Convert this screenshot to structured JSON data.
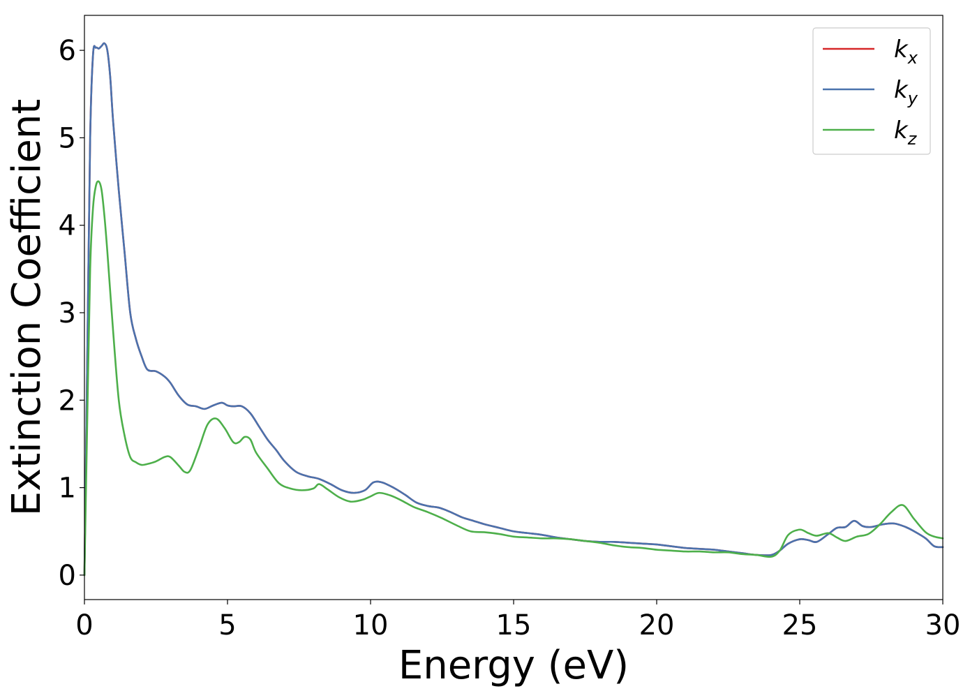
{
  "chart_data": {
    "type": "line",
    "xlabel": "Energy (eV)",
    "ylabel": "Extinction Coefficient",
    "xlim": [
      0,
      30
    ],
    "ylim": [
      -0.28,
      6.4
    ],
    "xticks": [
      0,
      5,
      10,
      15,
      20,
      25,
      30
    ],
    "yticks": [
      0,
      1,
      2,
      3,
      4,
      5,
      6
    ],
    "xtick_labels": [
      "0",
      "5",
      "10",
      "15",
      "20",
      "25",
      "30"
    ],
    "ytick_labels": [
      "0",
      "1",
      "2",
      "3",
      "4",
      "5",
      "6"
    ],
    "grid": false,
    "legend_position": "top-right",
    "series": [
      {
        "name": "k_x",
        "label_base": "k",
        "label_sub": "x",
        "color": "#d62728",
        "x": [
          0,
          0.1,
          0.2,
          0.3,
          0.4,
          0.5,
          0.6,
          0.7,
          0.8,
          0.9,
          1.0,
          1.2,
          1.4,
          1.6,
          1.8,
          2.0,
          2.2,
          2.5,
          2.8,
          3.0,
          3.3,
          3.6,
          3.9,
          4.2,
          4.5,
          4.8,
          5.0,
          5.2,
          5.5,
          5.8,
          6.1,
          6.4,
          6.7,
          7.0,
          7.4,
          7.8,
          8.2,
          8.6,
          9.0,
          9.4,
          9.8,
          10.1,
          10.4,
          10.8,
          11.2,
          11.6,
          12.0,
          12.4,
          12.8,
          13.2,
          13.6,
          14.0,
          14.5,
          15.0,
          15.5,
          16.0,
          16.5,
          17.0,
          17.5,
          18.0,
          18.5,
          19.0,
          19.5,
          20.0,
          20.5,
          21.0,
          21.5,
          22.0,
          22.5,
          23.0,
          23.5,
          24.0,
          24.3,
          24.6,
          25.0,
          25.3,
          25.6,
          26.0,
          26.3,
          26.6,
          26.9,
          27.2,
          27.5,
          27.9,
          28.3,
          28.7,
          29.0,
          29.4,
          29.7,
          30.0
        ],
        "y": [
          0.0,
          2.5,
          5.0,
          5.95,
          6.03,
          6.02,
          6.05,
          6.08,
          6.0,
          5.7,
          5.2,
          4.4,
          3.7,
          3.0,
          2.7,
          2.5,
          2.35,
          2.33,
          2.27,
          2.2,
          2.05,
          1.95,
          1.93,
          1.9,
          1.94,
          1.97,
          1.94,
          1.93,
          1.93,
          1.85,
          1.7,
          1.55,
          1.43,
          1.3,
          1.18,
          1.13,
          1.1,
          1.04,
          0.97,
          0.94,
          0.97,
          1.06,
          1.06,
          1.0,
          0.92,
          0.83,
          0.79,
          0.77,
          0.72,
          0.66,
          0.62,
          0.58,
          0.54,
          0.5,
          0.48,
          0.46,
          0.43,
          0.41,
          0.39,
          0.38,
          0.38,
          0.37,
          0.36,
          0.35,
          0.33,
          0.31,
          0.3,
          0.29,
          0.27,
          0.25,
          0.23,
          0.23,
          0.28,
          0.36,
          0.41,
          0.4,
          0.38,
          0.47,
          0.54,
          0.55,
          0.62,
          0.56,
          0.55,
          0.58,
          0.59,
          0.55,
          0.5,
          0.42,
          0.33,
          0.32
        ]
      },
      {
        "name": "k_y",
        "label_base": "k",
        "label_sub": "y",
        "color": "#4a72ad",
        "x": [
          0,
          0.1,
          0.2,
          0.3,
          0.4,
          0.5,
          0.6,
          0.7,
          0.8,
          0.9,
          1.0,
          1.2,
          1.4,
          1.6,
          1.8,
          2.0,
          2.2,
          2.5,
          2.8,
          3.0,
          3.3,
          3.6,
          3.9,
          4.2,
          4.5,
          4.8,
          5.0,
          5.2,
          5.5,
          5.8,
          6.1,
          6.4,
          6.7,
          7.0,
          7.4,
          7.8,
          8.2,
          8.6,
          9.0,
          9.4,
          9.8,
          10.1,
          10.4,
          10.8,
          11.2,
          11.6,
          12.0,
          12.4,
          12.8,
          13.2,
          13.6,
          14.0,
          14.5,
          15.0,
          15.5,
          16.0,
          16.5,
          17.0,
          17.5,
          18.0,
          18.5,
          19.0,
          19.5,
          20.0,
          20.5,
          21.0,
          21.5,
          22.0,
          22.5,
          23.0,
          23.5,
          24.0,
          24.3,
          24.6,
          25.0,
          25.3,
          25.6,
          26.0,
          26.3,
          26.6,
          26.9,
          27.2,
          27.5,
          27.9,
          28.3,
          28.7,
          29.0,
          29.4,
          29.7,
          30.0
        ],
        "y": [
          0.0,
          2.5,
          5.0,
          5.95,
          6.03,
          6.02,
          6.05,
          6.08,
          6.0,
          5.7,
          5.2,
          4.4,
          3.7,
          3.0,
          2.7,
          2.5,
          2.35,
          2.33,
          2.27,
          2.2,
          2.05,
          1.95,
          1.93,
          1.9,
          1.94,
          1.97,
          1.94,
          1.93,
          1.93,
          1.85,
          1.7,
          1.55,
          1.43,
          1.3,
          1.18,
          1.13,
          1.1,
          1.04,
          0.97,
          0.94,
          0.97,
          1.06,
          1.06,
          1.0,
          0.92,
          0.83,
          0.79,
          0.77,
          0.72,
          0.66,
          0.62,
          0.58,
          0.54,
          0.5,
          0.48,
          0.46,
          0.43,
          0.41,
          0.39,
          0.38,
          0.38,
          0.37,
          0.36,
          0.35,
          0.33,
          0.31,
          0.3,
          0.29,
          0.27,
          0.25,
          0.23,
          0.23,
          0.28,
          0.36,
          0.41,
          0.4,
          0.38,
          0.47,
          0.54,
          0.55,
          0.62,
          0.56,
          0.55,
          0.58,
          0.59,
          0.55,
          0.5,
          0.42,
          0.33,
          0.32
        ]
      },
      {
        "name": "k_z",
        "label_base": "k",
        "label_sub": "z",
        "color": "#4daf4a",
        "x": [
          0,
          0.1,
          0.2,
          0.3,
          0.4,
          0.5,
          0.6,
          0.7,
          0.8,
          1.0,
          1.2,
          1.4,
          1.6,
          1.8,
          2.0,
          2.2,
          2.5,
          2.8,
          3.0,
          3.3,
          3.5,
          3.7,
          4.0,
          4.3,
          4.6,
          4.9,
          5.2,
          5.4,
          5.6,
          5.8,
          6.0,
          6.4,
          6.8,
          7.2,
          7.6,
          8.0,
          8.2,
          8.5,
          8.9,
          9.3,
          9.7,
          10.0,
          10.3,
          10.7,
          11.1,
          11.5,
          12.0,
          12.5,
          13.0,
          13.5,
          14.0,
          14.5,
          15.0,
          15.5,
          16.0,
          16.5,
          17.0,
          17.5,
          18.0,
          18.5,
          19.0,
          19.5,
          20.0,
          20.5,
          21.0,
          21.5,
          22.0,
          22.5,
          23.0,
          23.5,
          24.0,
          24.3,
          24.6,
          25.0,
          25.3,
          25.6,
          26.0,
          26.3,
          26.6,
          27.0,
          27.4,
          27.8,
          28.2,
          28.6,
          29.0,
          29.4,
          29.7,
          30.0
        ],
        "y": [
          0.0,
          1.8,
          3.5,
          4.2,
          4.45,
          4.5,
          4.4,
          4.1,
          3.7,
          2.8,
          2.0,
          1.6,
          1.35,
          1.29,
          1.26,
          1.27,
          1.3,
          1.35,
          1.35,
          1.25,
          1.18,
          1.2,
          1.45,
          1.72,
          1.79,
          1.68,
          1.52,
          1.52,
          1.58,
          1.55,
          1.4,
          1.22,
          1.05,
          0.99,
          0.97,
          0.99,
          1.04,
          0.98,
          0.89,
          0.84,
          0.86,
          0.9,
          0.94,
          0.91,
          0.85,
          0.78,
          0.72,
          0.65,
          0.57,
          0.5,
          0.49,
          0.47,
          0.44,
          0.43,
          0.42,
          0.42,
          0.41,
          0.39,
          0.37,
          0.34,
          0.32,
          0.31,
          0.29,
          0.28,
          0.27,
          0.27,
          0.26,
          0.26,
          0.24,
          0.23,
          0.21,
          0.28,
          0.46,
          0.52,
          0.48,
          0.45,
          0.48,
          0.43,
          0.39,
          0.44,
          0.47,
          0.58,
          0.72,
          0.8,
          0.64,
          0.49,
          0.44,
          0.42
        ]
      }
    ]
  }
}
